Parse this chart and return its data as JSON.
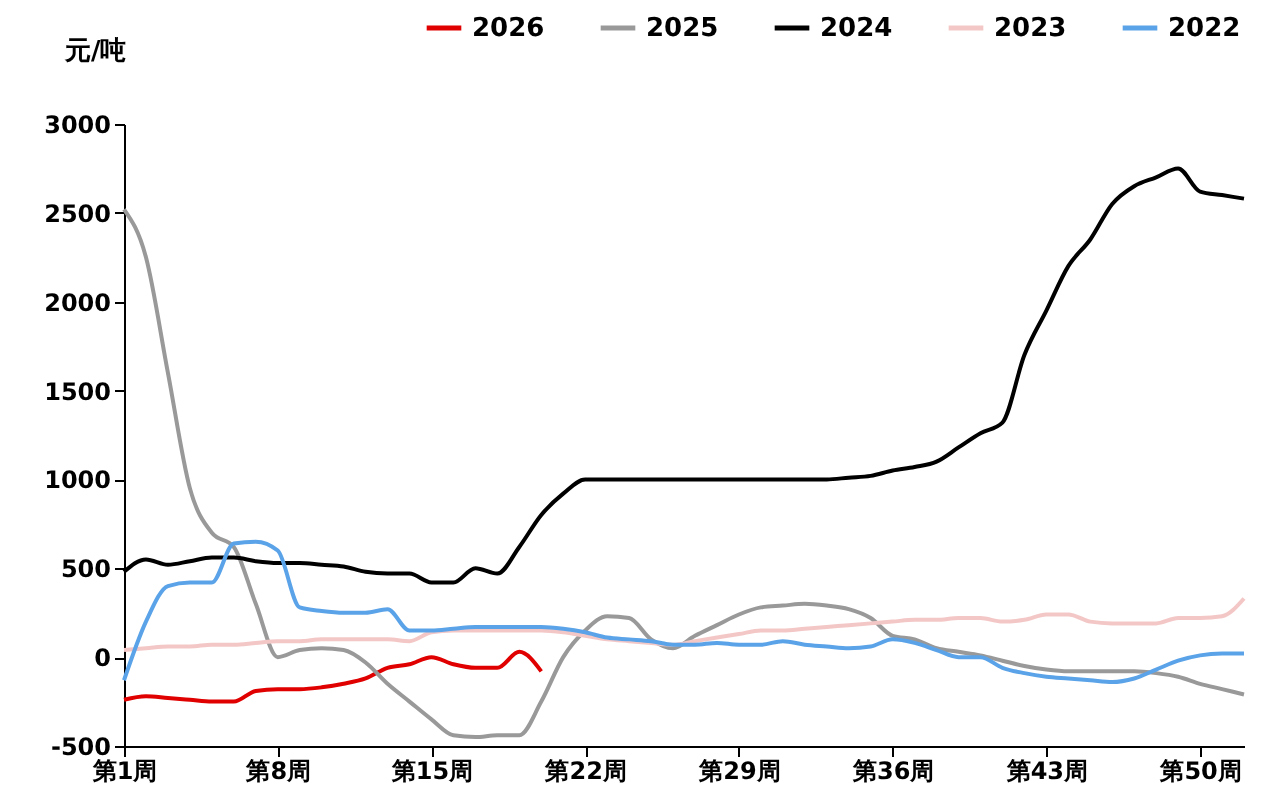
{
  "chart_data": {
    "type": "line",
    "ylabel": "元/吨",
    "categories": [
      "第1周",
      null,
      null,
      null,
      null,
      null,
      null,
      "第8周",
      null,
      null,
      null,
      null,
      null,
      null,
      "第15周",
      null,
      null,
      null,
      null,
      null,
      null,
      "第22周",
      null,
      null,
      null,
      null,
      null,
      null,
      "第29周",
      null,
      null,
      null,
      null,
      null,
      null,
      "第36周",
      null,
      null,
      null,
      null,
      null,
      null,
      "第43周",
      null,
      null,
      null,
      null,
      null,
      null,
      "第50周",
      null,
      null
    ],
    "ylim": [
      -500,
      3000
    ],
    "yticks": [
      -500,
      0,
      500,
      1000,
      1500,
      2000,
      2500,
      3000
    ],
    "grid": false,
    "legend": "top",
    "marker": "none",
    "line_style": "solid",
    "series": [
      {
        "name": "2026",
        "color": "#e00000",
        "values": [
          -240,
          -220,
          -230,
          -240,
          -250,
          -250,
          -190,
          -180,
          -180,
          -170,
          -150,
          -120,
          -60,
          -40,
          0,
          -40,
          -60,
          -60,
          30,
          -80,
          null,
          null,
          null,
          null,
          null,
          null,
          null,
          null,
          null,
          null,
          null,
          null,
          null,
          null,
          null,
          null,
          null,
          null,
          null,
          null,
          null,
          null,
          null,
          null,
          null,
          null,
          null,
          null,
          null,
          null,
          null,
          null
        ]
      },
      {
        "name": "2025",
        "color": "#999999",
        "values": [
          2520,
          2250,
          1600,
          950,
          700,
          620,
          300,
          0,
          40,
          50,
          40,
          -30,
          -150,
          -250,
          -350,
          -440,
          -450,
          -440,
          -440,
          -250,
          0,
          150,
          230,
          220,
          100,
          50,
          120,
          180,
          240,
          280,
          290,
          300,
          290,
          270,
          220,
          120,
          100,
          50,
          30,
          10,
          -20,
          -50,
          -70,
          -80,
          -80,
          -80,
          -80,
          -90,
          -110,
          -150,
          -180,
          -210
        ]
      },
      {
        "name": "2024",
        "color": "#000000",
        "values": [
          480,
          550,
          520,
          540,
          560,
          560,
          540,
          530,
          530,
          520,
          510,
          480,
          470,
          470,
          420,
          420,
          500,
          470,
          620,
          800,
          920,
          1000,
          1000,
          1000,
          1000,
          1000,
          1000,
          1000,
          1000,
          1000,
          1000,
          1000,
          1000,
          1010,
          1020,
          1050,
          1070,
          1100,
          1180,
          1260,
          1320,
          1700,
          1950,
          2200,
          2350,
          2550,
          2650,
          2700,
          2750,
          2620,
          2600,
          2580
        ]
      },
      {
        "name": "2023",
        "color": "#f4c7c7",
        "values": [
          40,
          50,
          60,
          60,
          70,
          70,
          80,
          90,
          90,
          100,
          100,
          100,
          100,
          90,
          140,
          150,
          150,
          150,
          150,
          150,
          140,
          120,
          100,
          90,
          80,
          70,
          90,
          110,
          130,
          150,
          150,
          160,
          170,
          180,
          190,
          200,
          210,
          210,
          220,
          220,
          200,
          210,
          240,
          240,
          200,
          190,
          190,
          190,
          220,
          220,
          230,
          330
        ]
      },
      {
        "name": "2022",
        "color": "#5ba3e8",
        "values": [
          -130,
          200,
          400,
          420,
          420,
          640,
          650,
          600,
          280,
          260,
          250,
          250,
          270,
          150,
          150,
          160,
          170,
          170,
          170,
          170,
          160,
          140,
          110,
          100,
          90,
          70,
          70,
          80,
          70,
          70,
          90,
          70,
          60,
          50,
          60,
          100,
          80,
          40,
          0,
          0,
          -60,
          -90,
          -110,
          -120,
          -130,
          -140,
          -120,
          -70,
          -20,
          10,
          20,
          20
        ]
      }
    ]
  }
}
